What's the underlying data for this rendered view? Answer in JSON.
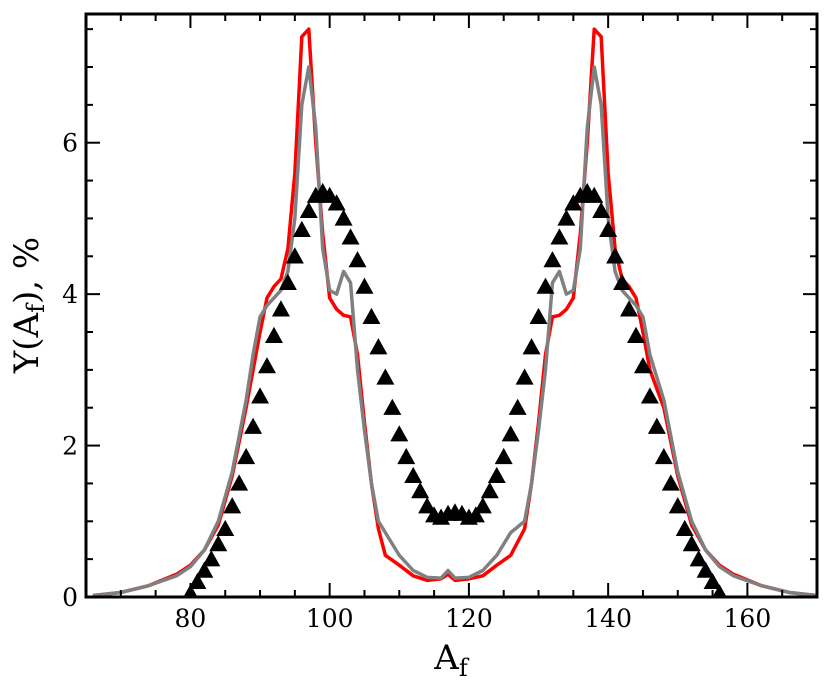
{
  "chart_data": {
    "type": "line",
    "xlabel": "A",
    "xlabel_sub": "f",
    "ylabel_parts": [
      "Y(A",
      "f",
      "), %"
    ],
    "xlim": [
      65,
      170
    ],
    "ylim": [
      0,
      7.7
    ],
    "xticks": [
      80,
      100,
      120,
      140,
      160
    ],
    "yticks": [
      0,
      2,
      4,
      6
    ],
    "series": [
      {
        "color": "#ff0000",
        "marker": "none",
        "x": [
          66,
          70,
          74,
          78,
          80,
          82,
          84,
          86,
          88,
          89,
          90,
          91,
          92,
          93,
          94,
          95,
          96,
          97,
          98,
          99,
          100,
          101,
          102,
          103,
          104,
          105,
          106,
          107,
          108,
          110,
          112,
          114,
          116,
          117,
          118,
          120,
          122,
          124,
          126,
          128,
          129,
          130,
          131,
          132,
          133,
          134,
          135,
          136,
          137,
          138,
          139,
          140,
          141,
          142,
          143,
          144,
          145,
          146,
          148,
          150,
          152,
          154,
          156,
          158,
          162,
          166,
          170
        ],
        "y": [
          0.02,
          0.06,
          0.15,
          0.3,
          0.42,
          0.62,
          0.95,
          1.6,
          2.5,
          3.0,
          3.5,
          3.95,
          4.1,
          4.2,
          4.6,
          5.6,
          7.4,
          7.5,
          6.0,
          4.8,
          3.95,
          3.8,
          3.72,
          3.7,
          3.2,
          2.3,
          1.5,
          0.9,
          0.55,
          0.42,
          0.28,
          0.22,
          0.24,
          0.3,
          0.22,
          0.24,
          0.28,
          0.42,
          0.55,
          0.9,
          1.5,
          2.3,
          3.2,
          3.7,
          3.72,
          3.8,
          3.95,
          4.8,
          6.0,
          7.5,
          7.4,
          5.6,
          4.6,
          4.2,
          4.1,
          3.95,
          3.5,
          3.0,
          2.5,
          1.6,
          0.95,
          0.62,
          0.42,
          0.3,
          0.15,
          0.06,
          0.02
        ]
      },
      {
        "color": "#808080",
        "marker": "none",
        "x": [
          66,
          70,
          74,
          78,
          80,
          82,
          84,
          86,
          88,
          89,
          90,
          91,
          92,
          93,
          94,
          95,
          96,
          97,
          98,
          99,
          100,
          101,
          102,
          103,
          104,
          105,
          106,
          107,
          108,
          110,
          112,
          114,
          116,
          117,
          118,
          120,
          122,
          124,
          126,
          128,
          129,
          130,
          131,
          132,
          133,
          134,
          135,
          136,
          137,
          138,
          139,
          140,
          141,
          142,
          143,
          144,
          145,
          146,
          148,
          150,
          152,
          154,
          156,
          158,
          162,
          166,
          170
        ],
        "y": [
          0.02,
          0.06,
          0.15,
          0.28,
          0.4,
          0.62,
          1.0,
          1.65,
          2.6,
          3.2,
          3.7,
          3.85,
          3.95,
          4.05,
          4.3,
          5.0,
          6.5,
          7.0,
          6.2,
          4.6,
          4.05,
          4.0,
          4.3,
          4.15,
          3.0,
          2.2,
          1.5,
          1.0,
          0.85,
          0.55,
          0.35,
          0.26,
          0.25,
          0.35,
          0.25,
          0.26,
          0.35,
          0.55,
          0.85,
          1.0,
          1.5,
          2.2,
          3.0,
          4.15,
          4.3,
          4.0,
          4.05,
          4.6,
          6.2,
          7.0,
          6.5,
          5.0,
          4.3,
          4.05,
          3.95,
          3.85,
          3.7,
          3.2,
          2.6,
          1.65,
          1.0,
          0.62,
          0.4,
          0.28,
          0.15,
          0.06,
          0.02
        ]
      },
      {
        "color": "#000000",
        "marker": "triangle",
        "x": [
          80,
          81,
          82,
          83,
          84,
          85,
          86,
          87,
          88,
          89,
          90,
          91,
          92,
          93,
          94,
          95,
          96,
          97,
          98,
          99,
          100,
          101,
          102,
          103,
          104,
          105,
          106,
          107,
          108,
          109,
          110,
          111,
          112,
          113,
          114,
          115,
          116,
          117,
          118,
          119,
          120,
          121,
          122,
          123,
          124,
          125,
          126,
          127,
          128,
          129,
          130,
          131,
          132,
          133,
          134,
          135,
          136,
          137,
          138,
          139,
          140,
          141,
          142,
          143,
          144,
          145,
          146,
          147,
          148,
          149,
          150,
          151,
          152,
          153,
          154,
          155,
          156
        ],
        "y": [
          0.05,
          0.2,
          0.35,
          0.5,
          0.7,
          0.9,
          1.2,
          1.5,
          1.85,
          2.25,
          2.65,
          3.05,
          3.45,
          3.8,
          4.15,
          4.5,
          4.85,
          5.1,
          5.3,
          5.35,
          5.3,
          5.2,
          5.0,
          4.75,
          4.45,
          4.1,
          3.7,
          3.3,
          2.9,
          2.5,
          2.15,
          1.85,
          1.6,
          1.4,
          1.2,
          1.08,
          1.05,
          1.1,
          1.12,
          1.1,
          1.05,
          1.08,
          1.2,
          1.4,
          1.6,
          1.85,
          2.15,
          2.5,
          2.9,
          3.3,
          3.7,
          4.1,
          4.45,
          4.75,
          5.0,
          5.2,
          5.3,
          5.35,
          5.3,
          5.1,
          4.85,
          4.5,
          4.15,
          3.8,
          3.45,
          3.05,
          2.65,
          2.25,
          1.85,
          1.5,
          1.2,
          0.9,
          0.7,
          0.5,
          0.35,
          0.2,
          0.05
        ]
      }
    ]
  }
}
